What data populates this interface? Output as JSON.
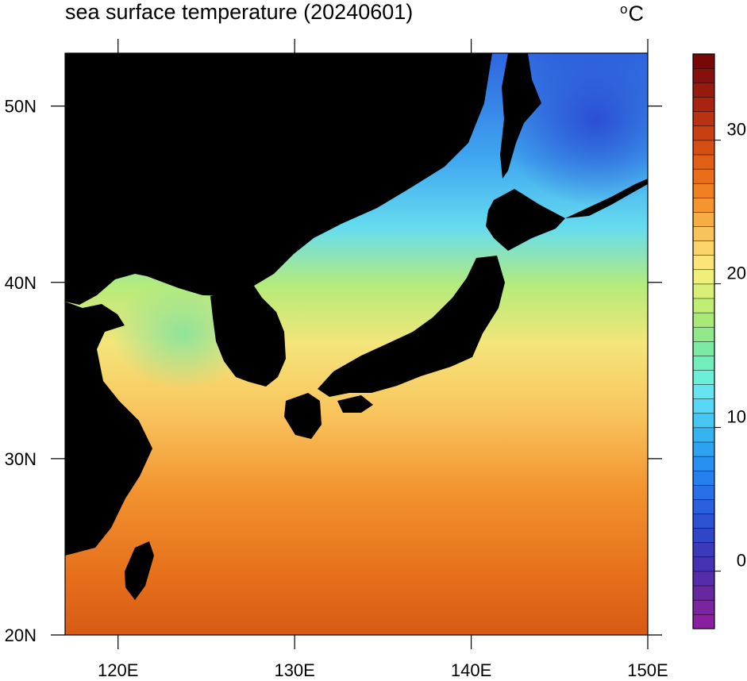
{
  "map": {
    "title": "sea surface temperature (20240601)",
    "unit_symbol": "o",
    "unit_letter": "C",
    "lon_ticks": [
      120,
      130,
      140,
      150
    ],
    "lon_labels": [
      "120E",
      "130E",
      "140E",
      "150E"
    ],
    "lat_ticks": [
      20,
      30,
      40,
      50
    ],
    "lat_labels": [
      "20N",
      "30N",
      "40N",
      "50N"
    ],
    "lon_range": [
      117,
      150
    ],
    "lat_range": [
      20,
      53
    ],
    "land_color": "#000000",
    "region": "Northwest Pacific, Japan, Korea, East China Sea"
  },
  "colorbar": {
    "min": -4,
    "max": 36,
    "interval": 1,
    "tick_values": [
      0,
      10,
      20,
      30
    ],
    "tick_labels": [
      "0",
      "10",
      "20",
      "30"
    ],
    "colors": [
      "#8a1fa0",
      "#7a249f",
      "#66289f",
      "#552da8",
      "#4432b0",
      "#3a3abb",
      "#3046c6",
      "#2c52d2",
      "#2a60dd",
      "#2770e6",
      "#2680ee",
      "#2790f0",
      "#2ca2f1",
      "#35b4f0",
      "#45c6f3",
      "#57d7f5",
      "#66e5f0",
      "#6ceed8",
      "#72eebd",
      "#7ceaa0",
      "#90e88a",
      "#a8e978",
      "#c0ed74",
      "#d8f078",
      "#eef07a",
      "#fbe47a",
      "#fbd56c",
      "#f8c35c",
      "#f6ad46",
      "#f3962f",
      "#ef8021",
      "#e96e1a",
      "#e05e16",
      "#d54f13",
      "#c84012",
      "#b93211",
      "#a82410",
      "#971a0e",
      "#86100c",
      "#780808"
    ]
  }
}
